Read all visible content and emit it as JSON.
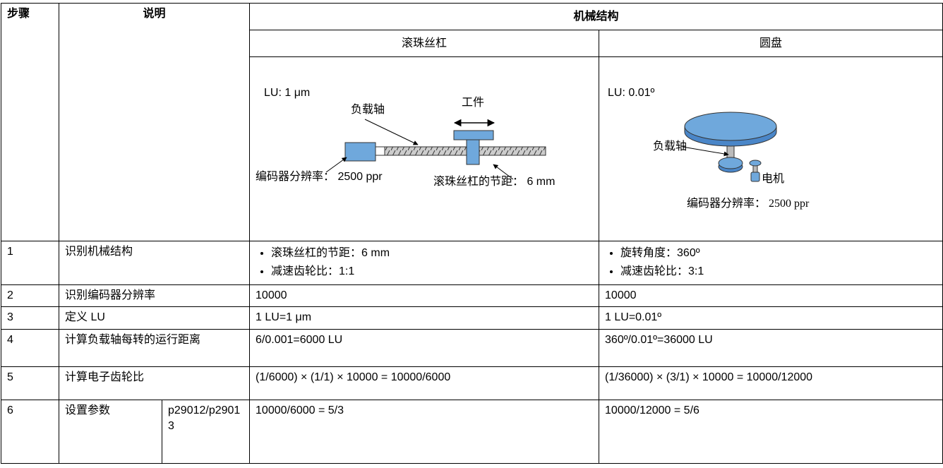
{
  "header": {
    "step": "步骤",
    "description": "说明",
    "mechanism": "机械结构",
    "ballscrew": "滚珠丝杠",
    "disc": "圆盘"
  },
  "diagrams": {
    "ballscrew": {
      "lu": "LU: 1 μm",
      "load_axis": "负载轴",
      "workpiece": "工件",
      "encoder": "编码器分辨率： 2500 ppr",
      "pitch": "滚珠丝杠的节距： 6 mm"
    },
    "disc": {
      "lu": "LU: 0.01º",
      "load_axis": "负载轴",
      "motor": "电机",
      "encoder": "编码器分辨率：  2500 ppr"
    }
  },
  "rows": [
    {
      "step": "1",
      "description": "识别机械结构",
      "ballscrew": [
        "滚珠丝杠的节距：6 mm",
        "减速齿轮比：1:1"
      ],
      "disc": [
        "旋转角度：360º",
        "减速齿轮比：3:1"
      ]
    },
    {
      "step": "2",
      "description": "识别编码器分辨率",
      "ballscrew": "10000",
      "disc": "10000"
    },
    {
      "step": "3",
      "description": "定义 LU",
      "ballscrew": "1 LU=1 μm",
      "disc": "1 LU=0.01º"
    },
    {
      "step": "4",
      "description": "计算负载轴每转的运行距离",
      "ballscrew": "6/0.001=6000 LU",
      "disc": "360º/0.01º=36000 LU"
    },
    {
      "step": "5",
      "description": "计算电子齿轮比",
      "ballscrew": "(1/6000) × (1/1) × 10000 = 10000/6000",
      "disc": "(1/36000) × (3/1) × 10000 = 10000/12000"
    },
    {
      "step": "6",
      "description": "设置参数",
      "parameter": "p29012/p29013",
      "ballscrew": "10000/6000 = 5/3",
      "disc": "10000/12000 = 5/6"
    }
  ]
}
